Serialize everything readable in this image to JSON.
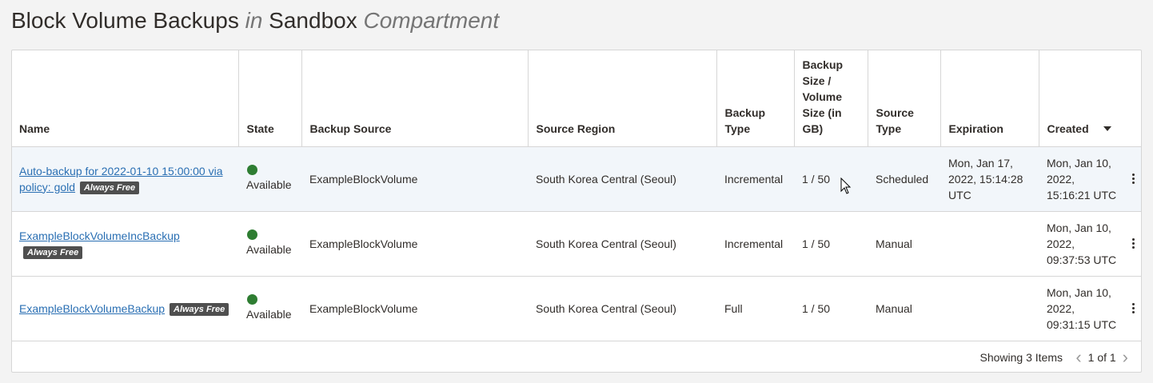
{
  "page": {
    "title_part1": "Block Volume Backups",
    "title_in": "in",
    "title_compartment_name": "Sandbox",
    "title_compartment_word": "Compartment"
  },
  "table": {
    "columns": {
      "name": "Name",
      "state": "State",
      "backup_source": "Backup Source",
      "source_region": "Source Region",
      "backup_type": "Backup Type",
      "backup_size": "Backup Size / Volume Size (in GB)",
      "source_type": "Source Type",
      "expiration": "Expiration",
      "created": "Created"
    },
    "badge_label": "Always Free",
    "rows": [
      {
        "name": "Auto-backup for 2022-01-10 15:00:00 via policy: gold",
        "state": "Available",
        "backup_source": "ExampleBlockVolume",
        "source_region": "South Korea Central (Seoul)",
        "backup_type": "Incremental",
        "backup_size": "1 / 50",
        "source_type": "Scheduled",
        "expiration": "Mon, Jan 17, 2022, 15:14:28 UTC",
        "created": "Mon, Jan 10, 2022, 15:16:21 UTC"
      },
      {
        "name": "ExampleBlockVolumeIncBackup",
        "state": "Available",
        "backup_source": "ExampleBlockVolume",
        "source_region": "South Korea Central (Seoul)",
        "backup_type": "Incremental",
        "backup_size": "1 / 50",
        "source_type": "Manual",
        "expiration": "",
        "created": "Mon, Jan 10, 2022, 09:37:53 UTC"
      },
      {
        "name": "ExampleBlockVolumeBackup",
        "state": "Available",
        "backup_source": "ExampleBlockVolume",
        "source_region": "South Korea Central (Seoul)",
        "backup_type": "Full",
        "backup_size": "1 / 50",
        "source_type": "Manual",
        "expiration": "",
        "created": "Mon, Jan 10, 2022, 09:31:15 UTC"
      }
    ]
  },
  "footer": {
    "showing": "Showing 3 Items",
    "page_info": "1 of 1"
  },
  "colors": {
    "link": "#2a6fb3",
    "status_available": "#2e7d32",
    "badge_bg": "#4f4f4f",
    "row_highlight": "#f2f6fa"
  },
  "icons": [
    "status-dot-icon",
    "sort-desc-icon",
    "kebab-menu-icon",
    "chevron-left-icon",
    "chevron-right-icon",
    "mouse-pointer-icon"
  ]
}
